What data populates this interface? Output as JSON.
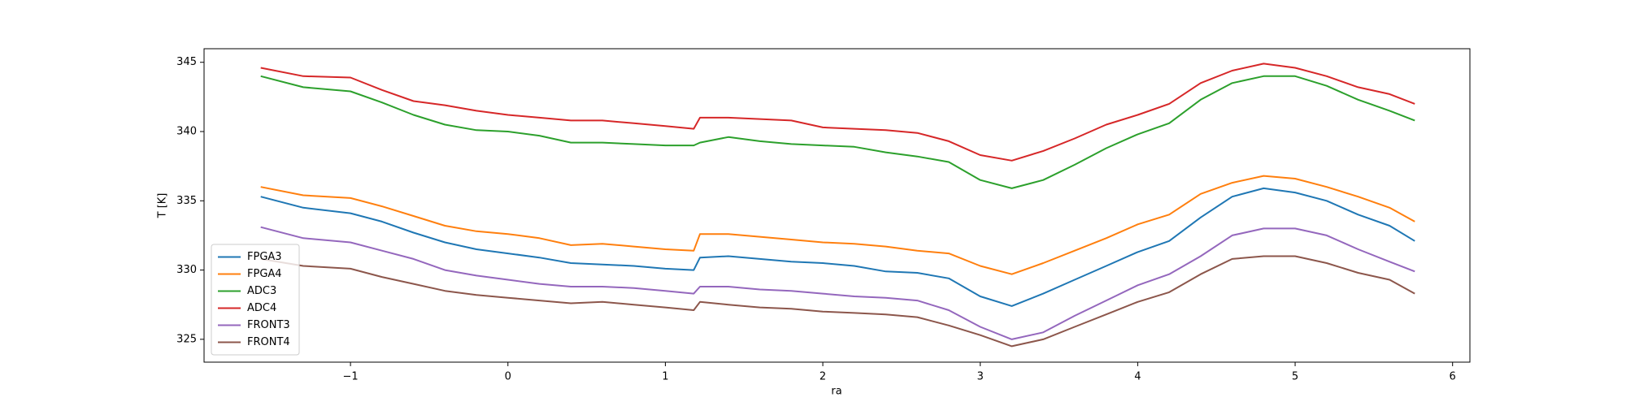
{
  "chart_data": {
    "type": "line",
    "xlabel": "ra",
    "ylabel": "T [K]",
    "x": [
      -1.57,
      -1.3,
      -1.0,
      -0.8,
      -0.6,
      -0.4,
      -0.2,
      0,
      0.2,
      0.4,
      0.6,
      0.8,
      1.0,
      1.18,
      1.22,
      1.4,
      1.6,
      1.8,
      2.0,
      2.2,
      2.4,
      2.6,
      2.8,
      3.0,
      3.2,
      3.4,
      3.6,
      3.8,
      4.0,
      4.2,
      4.4,
      4.6,
      4.8,
      5.0,
      5.2,
      5.4,
      5.6,
      5.76
    ],
    "series": [
      {
        "name": "FPGA3",
        "color": "#1f77b4",
        "values": [
          335.3,
          334.5,
          334.1,
          333.5,
          332.7,
          332.0,
          331.5,
          331.2,
          330.9,
          330.5,
          330.4,
          330.3,
          330.1,
          330.0,
          330.9,
          331.0,
          330.8,
          330.6,
          330.5,
          330.3,
          329.9,
          329.8,
          329.4,
          328.1,
          327.4,
          328.3,
          329.3,
          330.3,
          331.3,
          332.1,
          333.8,
          335.3,
          335.9,
          335.6,
          335.0,
          334.0,
          333.2,
          332.1
        ]
      },
      {
        "name": "FPGA4",
        "color": "#ff7f0e",
        "values": [
          336.0,
          335.4,
          335.2,
          334.6,
          333.9,
          333.2,
          332.8,
          332.6,
          332.3,
          331.8,
          331.9,
          331.7,
          331.5,
          331.4,
          332.6,
          332.6,
          332.4,
          332.2,
          332.0,
          331.9,
          331.7,
          331.4,
          331.2,
          330.3,
          329.7,
          330.5,
          331.4,
          332.3,
          333.3,
          334.0,
          335.5,
          336.3,
          336.8,
          336.6,
          336.0,
          335.3,
          334.5,
          333.5
        ]
      },
      {
        "name": "ADC3",
        "color": "#2ca02c",
        "values": [
          344.0,
          343.2,
          342.9,
          342.1,
          341.2,
          340.5,
          340.1,
          340.0,
          339.7,
          339.2,
          339.2,
          339.1,
          339.0,
          339.0,
          339.2,
          339.6,
          339.3,
          339.1,
          339.0,
          338.9,
          338.5,
          338.2,
          337.8,
          336.5,
          335.9,
          336.5,
          337.6,
          338.8,
          339.8,
          340.6,
          342.3,
          343.5,
          344.0,
          344.0,
          343.3,
          342.3,
          341.5,
          340.8
        ]
      },
      {
        "name": "ADC4",
        "color": "#d62728",
        "values": [
          344.6,
          344.0,
          343.9,
          343.0,
          342.2,
          341.9,
          341.5,
          341.2,
          341.0,
          340.8,
          340.8,
          340.6,
          340.4,
          340.2,
          341.0,
          341.0,
          340.9,
          340.8,
          340.3,
          340.2,
          340.1,
          339.9,
          339.3,
          338.3,
          337.9,
          338.6,
          339.5,
          340.5,
          341.2,
          342.0,
          343.5,
          344.4,
          344.9,
          344.6,
          344.0,
          343.2,
          342.7,
          342.0
        ]
      },
      {
        "name": "FRONT3",
        "color": "#9467bd",
        "values": [
          333.1,
          332.3,
          332.0,
          331.4,
          330.8,
          330.0,
          329.6,
          329.3,
          329.0,
          328.8,
          328.8,
          328.7,
          328.5,
          328.3,
          328.8,
          328.8,
          328.6,
          328.5,
          328.3,
          328.1,
          328.0,
          327.8,
          327.1,
          325.9,
          325.0,
          325.5,
          326.7,
          327.8,
          328.9,
          329.7,
          331.0,
          332.5,
          333.0,
          333.0,
          332.5,
          331.5,
          330.6,
          329.9
        ]
      },
      {
        "name": "FRONT4",
        "color": "#8c564b",
        "values": [
          330.8,
          330.3,
          330.1,
          329.5,
          329.0,
          328.5,
          328.2,
          328.0,
          327.8,
          327.6,
          327.7,
          327.5,
          327.3,
          327.1,
          327.7,
          327.5,
          327.3,
          327.2,
          327.0,
          326.9,
          326.8,
          326.6,
          326.0,
          325.3,
          324.5,
          325.0,
          325.9,
          326.8,
          327.7,
          328.4,
          329.7,
          330.8,
          331.0,
          331.0,
          330.5,
          329.8,
          329.3,
          328.3
        ]
      }
    ],
    "xlim": [
      -1.93,
      6.11
    ],
    "xticks": [
      {
        "value": -1,
        "label": "−1"
      },
      0,
      1,
      2,
      3,
      4,
      5,
      6
    ],
    "ylim": [
      323.35,
      345.98
    ],
    "yticks": [
      325,
      330,
      335,
      340,
      345
    ],
    "legend": "lower left"
  }
}
